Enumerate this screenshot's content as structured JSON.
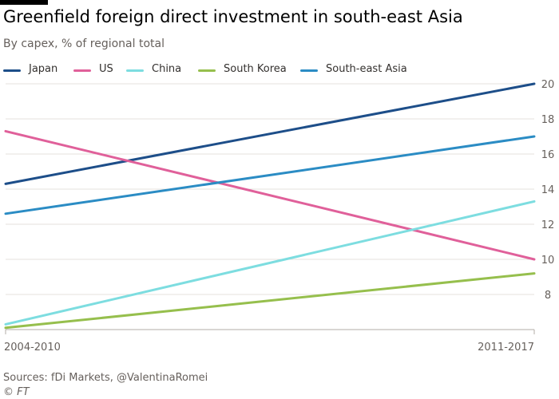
{
  "header": {
    "title": "Greenfield foreign direct investment in south-east Asia",
    "subtitle": "By capex, % of regional total"
  },
  "colors": {
    "Japan": "#1d4e89",
    "US": "#e0609a",
    "China": "#7ddde0",
    "South Korea": "#96bf4d",
    "South-east Asia": "#2b8cc4"
  },
  "chart_data": {
    "type": "line",
    "categories": [
      "2004-2010",
      "2011-2017"
    ],
    "series": [
      {
        "name": "Japan",
        "values": [
          14.3,
          20.0
        ]
      },
      {
        "name": "US",
        "values": [
          17.3,
          10.0
        ]
      },
      {
        "name": "China",
        "values": [
          6.3,
          13.3
        ]
      },
      {
        "name": "South Korea",
        "values": [
          6.1,
          9.2
        ]
      },
      {
        "name": "South-east Asia",
        "values": [
          12.6,
          17.0
        ]
      }
    ],
    "yticks": [
      8,
      10,
      12,
      14,
      16,
      18,
      20
    ],
    "ylim": [
      6,
      20
    ],
    "yaxis_side": "right",
    "grid": true,
    "legend_position": "top"
  },
  "footer": {
    "source": "Sources: fDi Markets, @ValentinaRomei",
    "credit": "© FT"
  }
}
